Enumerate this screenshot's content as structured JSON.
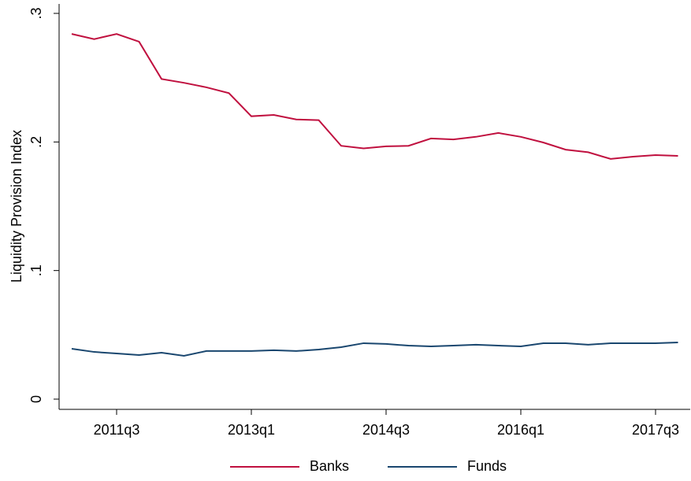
{
  "chart_data": {
    "type": "line",
    "ylabel": "Liquidity Provision Index",
    "categories": [
      null,
      null,
      "2011q3",
      null,
      null,
      null,
      null,
      null,
      "2013q1",
      null,
      null,
      null,
      null,
      null,
      "2014q3",
      null,
      null,
      null,
      null,
      null,
      "2016q1",
      null,
      null,
      null,
      null,
      null,
      "2017q3",
      null
    ],
    "series": [
      {
        "name": "Banks",
        "color": "#c0103f",
        "values": [
          0.284,
          0.28,
          0.284,
          0.278,
          0.249,
          0.246,
          0.2425,
          0.238,
          0.22,
          0.221,
          0.2175,
          0.217,
          0.197,
          0.195,
          0.1966,
          0.197,
          0.2027,
          0.202,
          0.204,
          0.207,
          0.204,
          0.1996,
          0.194,
          0.192,
          0.1868,
          0.1886,
          0.1898,
          0.1892
        ]
      },
      {
        "name": "Funds",
        "color": "#1a476f",
        "values": [
          0.0392,
          0.0367,
          0.0355,
          0.0343,
          0.0361,
          0.0337,
          0.0374,
          0.0374,
          0.0374,
          0.038,
          0.0374,
          0.0386,
          0.0404,
          0.0435,
          0.0429,
          0.0416,
          0.041,
          0.0416,
          0.0423,
          0.0416,
          0.041,
          0.0435,
          0.0435,
          0.0423,
          0.0435,
          0.0435,
          0.0435,
          0.0441
        ]
      }
    ],
    "ylim": [
      0,
      0.3
    ],
    "yticks": [
      {
        "value": 0,
        "label": "0"
      },
      {
        "value": 0.1,
        "label": ".1"
      },
      {
        "value": 0.2,
        "label": ".2"
      },
      {
        "value": 0.3,
        "label": ".3"
      }
    ],
    "legend": "bottom"
  }
}
